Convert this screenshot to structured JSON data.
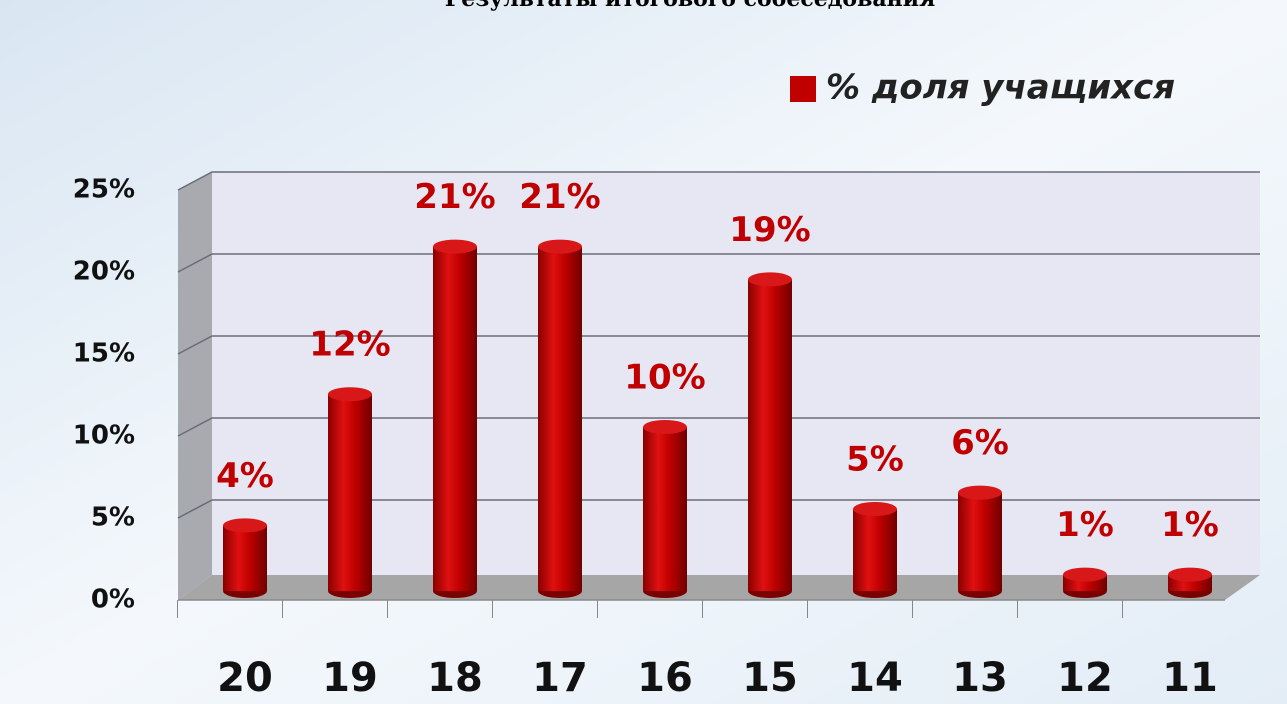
{
  "chart_data": {
    "type": "bar",
    "title": "Результаты итогового собеседования",
    "legend": "% доля учащихся",
    "categories": [
      "20",
      "19",
      "18",
      "17",
      "16",
      "15",
      "14",
      "13",
      "12",
      "11"
    ],
    "series": [
      {
        "name": "% доля учащихся",
        "color": "#c00000",
        "values": [
          4,
          12,
          21,
          21,
          10,
          19,
          5,
          6,
          1,
          1
        ],
        "value_labels": [
          "4%",
          "12%",
          "21%",
          "21%",
          "10%",
          "19%",
          "5%",
          "6%",
          "1%",
          "1%"
        ]
      }
    ],
    "ylim": [
      0,
      25
    ],
    "yticks": [
      {
        "value": 0,
        "label": "0%"
      },
      {
        "value": 5,
        "label": "5%"
      },
      {
        "value": 10,
        "label": "10%"
      },
      {
        "value": 15,
        "label": "15%"
      },
      {
        "value": 20,
        "label": "20%"
      },
      {
        "value": 25,
        "label": "25%"
      }
    ],
    "grid": true
  }
}
